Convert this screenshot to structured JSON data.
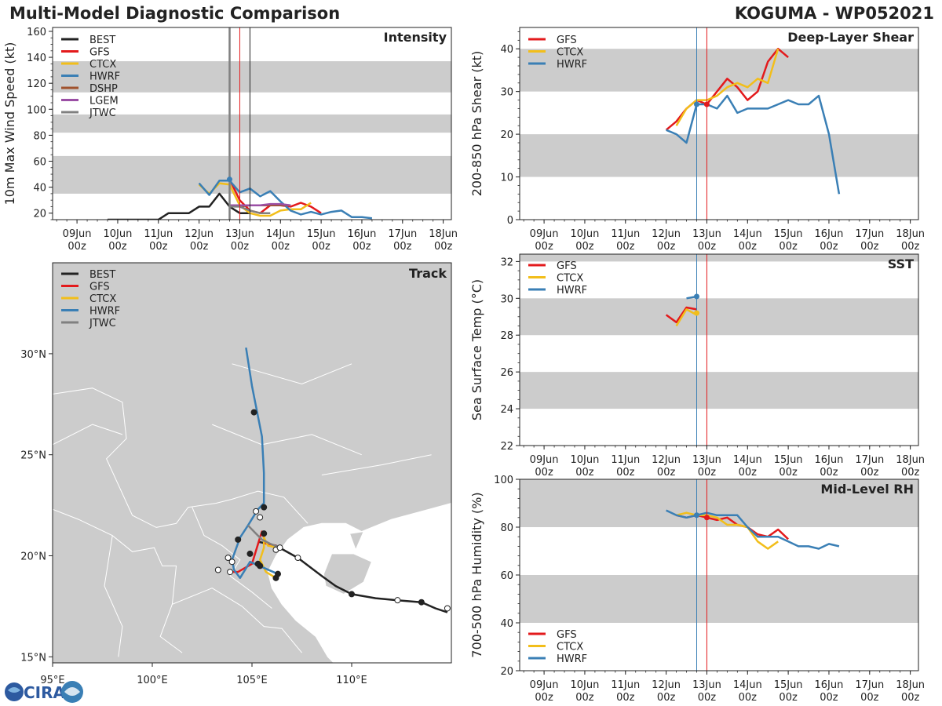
{
  "header": {
    "left_title": "Multi-Model Diagnostic Comparison",
    "right_title": "KOGUMA - WP052021"
  },
  "colors": {
    "BEST": "#222222",
    "GFS": "#e31a1c",
    "CTCX": "#f2be1a",
    "HWRF": "#3a7fb5",
    "DSHP": "#a0522d",
    "LGEM": "#9b4fa5",
    "JTWC": "#808080",
    "band": "#cccccc",
    "land": "#cccccc",
    "marker_blue": "#3a7fb5",
    "marker_red": "#e31a1c"
  },
  "time_axis": {
    "tick_labels_top": [
      "09Jun",
      "10Jun",
      "11Jun",
      "12Jun",
      "13Jun",
      "14Jun",
      "15Jun",
      "16Jun",
      "17Jun",
      "18Jun"
    ],
    "tick_labels_bottom": [
      "00z",
      "00z",
      "00z",
      "00z",
      "00z",
      "00z",
      "00z",
      "00z",
      "00z",
      "00z"
    ],
    "tick_days": [
      9,
      10,
      11,
      12,
      13,
      14,
      15,
      16,
      17,
      18
    ],
    "range_days": [
      8.4,
      18.2
    ],
    "units": "day of June 2021 (decimal)"
  },
  "logo": {
    "text": "CIRA"
  },
  "chart_data": [
    {
      "id": "intensity",
      "type": "line",
      "title": "Intensity",
      "ylabel": "10m Max Wind Speed (kt)",
      "ylim": [
        15,
        163
      ],
      "yticks": [
        20,
        40,
        60,
        80,
        100,
        120,
        140,
        160
      ],
      "bands": [
        [
          35,
          64
        ],
        [
          82,
          96
        ],
        [
          113,
          137
        ]
      ],
      "vlines": [
        {
          "x": 12.75,
          "color": "#808080",
          "width": 2.5
        },
        {
          "x": 13.0,
          "color": "#e31a1c",
          "width": 1
        },
        {
          "x": 13.25,
          "color": "#222222",
          "width": 1
        }
      ],
      "legend": [
        "BEST",
        "GFS",
        "CTCX",
        "HWRF",
        "DSHP",
        "LGEM",
        "JTWC"
      ],
      "series": [
        {
          "name": "BEST",
          "x": [
            9.75,
            10.0,
            10.25,
            10.5,
            10.75,
            11.0,
            11.25,
            11.5,
            11.75,
            12.0,
            12.25,
            12.5,
            12.75,
            13.0,
            13.25
          ],
          "y": [
            15,
            15,
            15,
            15,
            15,
            15,
            20,
            20,
            20,
            25,
            25,
            35,
            25,
            20,
            20
          ]
        },
        {
          "name": "GFS",
          "x": [
            12.75,
            13.0,
            13.25,
            13.5,
            13.75,
            14.0,
            14.25,
            14.5,
            14.75,
            15.0
          ],
          "y": [
            46,
            30,
            22,
            20,
            26,
            26,
            25,
            28,
            25,
            20
          ]
        },
        {
          "name": "CTCX",
          "x": [
            12.0,
            12.25,
            12.5,
            12.75,
            13.0,
            13.25,
            13.5,
            13.75,
            14.0,
            14.25,
            14.5,
            14.75
          ],
          "y": [
            42,
            35,
            43,
            42,
            26,
            20,
            18,
            18,
            22,
            23,
            23,
            28
          ]
        },
        {
          "name": "HWRF",
          "x": [
            12.0,
            12.25,
            12.5,
            12.75,
            13.0,
            13.25,
            13.5,
            13.75,
            14.0,
            14.25,
            14.5,
            14.75,
            15.0,
            15.25,
            15.5,
            15.75,
            16.0,
            16.25
          ],
          "y": [
            43,
            34,
            45,
            45,
            36,
            39,
            33,
            37,
            29,
            22,
            19,
            21,
            19,
            21,
            22,
            17,
            17,
            16
          ]
        },
        {
          "name": "DSHP",
          "x": [
            12.75,
            13.0,
            13.25,
            13.5,
            13.75,
            14.0,
            14.25
          ],
          "y": [
            26,
            25,
            26,
            26,
            26,
            26,
            26
          ]
        },
        {
          "name": "LGEM",
          "x": [
            12.75,
            13.0,
            13.25,
            13.5,
            13.75,
            14.0,
            14.25
          ],
          "y": [
            26,
            26,
            26,
            26,
            27,
            27,
            26
          ]
        },
        {
          "name": "JTWC",
          "x": [
            12.75,
            13.0,
            13.25,
            13.5,
            13.75
          ],
          "y": [
            25,
            25,
            22,
            20,
            20
          ]
        }
      ],
      "markers": [
        {
          "x": 12.75,
          "y": 46,
          "color": "HWRF"
        }
      ]
    },
    {
      "id": "shear",
      "type": "line",
      "title": "Deep-Layer Shear",
      "ylabel": "200-850 hPa Shear (kt)",
      "ylim": [
        0,
        45
      ],
      "yticks": [
        0,
        10,
        20,
        30,
        40
      ],
      "bands": [
        [
          10,
          20
        ],
        [
          30,
          40
        ]
      ],
      "vlines": [
        {
          "x": 12.75,
          "color": "#3a7fb5",
          "width": 1
        },
        {
          "x": 13.0,
          "color": "#e31a1c",
          "width": 1
        }
      ],
      "legend": [
        "GFS",
        "CTCX",
        "HWRF"
      ],
      "series": [
        {
          "name": "GFS",
          "x": [
            12.0,
            12.25,
            12.5,
            12.75,
            13.0,
            13.25,
            13.5,
            13.75,
            14.0,
            14.25,
            14.5,
            14.75,
            15.0
          ],
          "y": [
            21,
            23,
            26,
            28,
            27,
            30,
            33,
            31,
            28,
            30,
            37,
            40,
            38
          ]
        },
        {
          "name": "CTCX",
          "x": [
            12.25,
            12.5,
            12.75,
            13.0,
            13.25,
            13.5,
            13.75,
            14.0,
            14.25,
            14.5,
            14.75
          ],
          "y": [
            22,
            26,
            28,
            28,
            29,
            31,
            32,
            31,
            33,
            32,
            40
          ]
        },
        {
          "name": "HWRF",
          "x": [
            12.0,
            12.25,
            12.5,
            12.75,
            13.0,
            13.25,
            13.5,
            13.75,
            14.0,
            14.25,
            14.5,
            14.75,
            15.0,
            15.25,
            15.5,
            15.75,
            16.0,
            16.25
          ],
          "y": [
            21,
            20,
            18,
            27,
            27,
            26,
            29,
            25,
            26,
            26,
            26,
            27,
            28,
            27,
            27,
            29,
            20,
            6
          ]
        }
      ],
      "markers": [
        {
          "x": 12.75,
          "y": 27,
          "color": "HWRF"
        },
        {
          "x": 13.0,
          "y": 27,
          "color": "GFS"
        }
      ]
    },
    {
      "id": "sst",
      "type": "line",
      "title": "SST",
      "ylabel": "Sea Surface Temp (°C)",
      "ylim": [
        22,
        32.4
      ],
      "yticks": [
        22,
        24,
        26,
        28,
        30,
        32
      ],
      "bands": [
        [
          24,
          26
        ],
        [
          28,
          30
        ],
        [
          32,
          32.4
        ]
      ],
      "vlines": [
        {
          "x": 12.75,
          "color": "#3a7fb5",
          "width": 1
        },
        {
          "x": 13.0,
          "color": "#e31a1c",
          "width": 1
        }
      ],
      "legend": [
        "GFS",
        "CTCX",
        "HWRF"
      ],
      "series": [
        {
          "name": "GFS",
          "x": [
            12.0,
            12.25,
            12.5,
            12.75
          ],
          "y": [
            29.1,
            28.7,
            29.5,
            29.4
          ]
        },
        {
          "name": "CTCX",
          "x": [
            12.25,
            12.5,
            12.75
          ],
          "y": [
            28.5,
            29.4,
            29.1
          ]
        },
        {
          "name": "HWRF",
          "x": [
            12.5,
            12.75
          ],
          "y": [
            30.0,
            30.1
          ]
        }
      ],
      "markers": [
        {
          "x": 12.75,
          "y": 30.1,
          "color": "HWRF"
        },
        {
          "x": 12.75,
          "y": 29.2,
          "color": "CTCX"
        }
      ]
    },
    {
      "id": "rh",
      "type": "line",
      "title": "Mid-Level RH",
      "ylabel": "700-500 hPa Humidity (%)",
      "ylim": [
        20,
        100
      ],
      "yticks": [
        20,
        40,
        60,
        80,
        100
      ],
      "bands": [
        [
          40,
          60
        ],
        [
          80,
          100
        ]
      ],
      "vlines": [
        {
          "x": 12.75,
          "color": "#3a7fb5",
          "width": 1
        },
        {
          "x": 13.0,
          "color": "#e31a1c",
          "width": 1
        }
      ],
      "legend": [
        "GFS",
        "CTCX",
        "HWRF"
      ],
      "series": [
        {
          "name": "GFS",
          "x": [
            12.25,
            12.5,
            12.75,
            13.0,
            13.25,
            13.5,
            13.75,
            14.0,
            14.25,
            14.5,
            14.75,
            15.0
          ],
          "y": [
            85,
            84,
            85,
            84,
            83,
            84,
            81,
            80,
            77,
            76,
            79,
            75
          ]
        },
        {
          "name": "CTCX",
          "x": [
            12.25,
            12.5,
            12.75,
            13.0,
            13.25,
            13.5,
            13.75,
            14.0,
            14.25,
            14.5,
            14.75
          ],
          "y": [
            85,
            86,
            85,
            85,
            84,
            81,
            81,
            80,
            74,
            71,
            74
          ]
        },
        {
          "name": "HWRF",
          "x": [
            12.0,
            12.25,
            12.5,
            12.75,
            13.0,
            13.25,
            13.5,
            13.75,
            14.0,
            14.25,
            14.5,
            14.75,
            15.0,
            15.25,
            15.5,
            15.75,
            16.0,
            16.25
          ],
          "y": [
            87,
            85,
            84,
            85,
            86,
            85,
            85,
            85,
            80,
            76,
            76,
            76,
            74,
            72,
            72,
            71,
            73,
            72
          ]
        }
      ],
      "markers": [
        {
          "x": 12.75,
          "y": 85,
          "color": "HWRF"
        },
        {
          "x": 13.0,
          "y": 84,
          "color": "GFS"
        }
      ]
    },
    {
      "id": "track",
      "type": "scatter",
      "title": "Track",
      "xlabel_ticks": [
        "95°E",
        "100°E",
        "105°E",
        "110°E"
      ],
      "x_tick_values": [
        95,
        100,
        105,
        110
      ],
      "ylabel_ticks": [
        "15°N",
        "20°N",
        "25°N",
        "30°N"
      ],
      "y_tick_values": [
        15,
        20,
        25,
        30
      ],
      "xlim": [
        95,
        115
      ],
      "ylim": [
        14.7,
        34.5
      ],
      "legend": [
        "BEST",
        "GFS",
        "CTCX",
        "HWRF",
        "JTWC"
      ],
      "tracks": [
        {
          "name": "BEST",
          "lon": [
            114.8,
            114.2,
            113.5,
            112.3,
            111.2,
            110.0,
            109.2,
            108.5,
            107.3,
            106.2,
            105.3
          ],
          "lat": [
            17.2,
            17.4,
            17.7,
            17.8,
            17.9,
            18.1,
            18.5,
            19.0,
            19.9,
            20.5,
            20.7
          ],
          "dots": [
            [
              114.8,
              17.4,
              "open"
            ],
            [
              113.5,
              17.7,
              "solid"
            ],
            [
              112.3,
              17.8,
              "open"
            ],
            [
              110.0,
              18.1,
              "solid"
            ],
            [
              107.3,
              19.9,
              "open"
            ]
          ]
        },
        {
          "name": "GFS",
          "lon": [
            106.2,
            105.7,
            105.5,
            105.4,
            105.0,
            104.3,
            103.9
          ],
          "lat": [
            20.5,
            20.6,
            21.2,
            20.9,
            19.6,
            19.2,
            19.2
          ],
          "dots": [
            [
              105.6,
              21.1,
              "solid"
            ],
            [
              105.3,
              19.6,
              "solid"
            ],
            [
              103.9,
              19.2,
              "open"
            ]
          ]
        },
        {
          "name": "CTCX",
          "lon": [
            106.3,
            105.8,
            105.6,
            105.6,
            105.4,
            105.7,
            106.2
          ],
          "lat": [
            20.4,
            20.5,
            20.9,
            20.4,
            19.8,
            19.2,
            18.9
          ],
          "dots": [
            [
              106.2,
              20.3,
              "open"
            ],
            [
              106.2,
              18.9,
              "solid"
            ]
          ]
        },
        {
          "name": "HWRF",
          "lon": [
            104.7,
            105.0,
            105.5,
            105.6,
            105.6,
            105.3,
            104.8,
            104.4,
            104.0,
            104.1,
            104.4,
            104.9,
            106.3
          ],
          "lat": [
            30.3,
            28.4,
            25.9,
            24.1,
            22.6,
            22.3,
            21.5,
            20.9,
            19.8,
            19.3,
            18.9,
            19.7,
            19.1
          ],
          "dots": [
            [
              105.1,
              27.1,
              "solid"
            ],
            [
              105.6,
              22.4,
              "solid"
            ],
            [
              104.3,
              20.8,
              "solid"
            ],
            [
              105.4,
              19.5,
              "solid"
            ],
            [
              104.0,
              19.7,
              "open"
            ],
            [
              103.3,
              19.3,
              "open"
            ],
            [
              106.3,
              19.1,
              "solid"
            ]
          ]
        },
        {
          "name": "JTWC",
          "lon": [
            104.8,
            105.2,
            105.5,
            105.9,
            106.4
          ],
          "lat": [
            21.5,
            21.1,
            20.8,
            20.6,
            20.4
          ],
          "dots": [
            [
              106.4,
              20.4,
              "open"
            ]
          ]
        }
      ],
      "extra_dots": [
        [
          105.2,
          22.2,
          "open"
        ],
        [
          105.4,
          21.9,
          "open"
        ],
        [
          104.9,
          20.1,
          "solid"
        ],
        [
          103.8,
          19.9,
          "open"
        ]
      ]
    }
  ]
}
